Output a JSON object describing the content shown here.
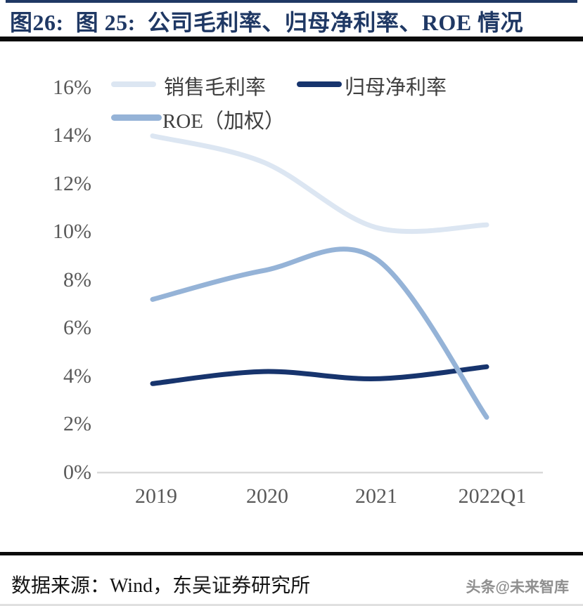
{
  "page": {
    "title": "图26:  图 25:  公司毛利率、归母净利率、ROE 情况"
  },
  "footer": {
    "source": "数据来源：Wind，东吴证券研究所",
    "watermark": "头条@未来智库"
  },
  "colors": {
    "title_navy": "#1f3864",
    "rule_black": "#0b0b0b",
    "axis_line": "#d9d9d9",
    "tick_text": "#595959"
  },
  "chart_data": {
    "type": "line",
    "title": "公司毛利率、归母净利率、ROE 情况",
    "categories": [
      "2019",
      "2020",
      "2021",
      "2022Q1"
    ],
    "series": [
      {
        "name": "销售毛利率",
        "values": [
          14.0,
          12.9,
          10.2,
          10.3
        ],
        "color": "#dce6f2"
      },
      {
        "name": "归母净利率",
        "values": [
          3.7,
          4.2,
          3.9,
          4.4
        ],
        "color": "#17346d"
      },
      {
        "name": "ROE（加权）",
        "values": [
          7.2,
          8.4,
          8.9,
          2.3
        ],
        "color": "#95b3d7"
      }
    ],
    "unit": "%",
    "ylim": [
      0,
      16
    ],
    "y_tick_step": 2,
    "y_ticks": [
      "16%",
      "14%",
      "12%",
      "10%",
      "8%",
      "6%",
      "4%",
      "2%",
      "0%"
    ],
    "grid": false,
    "line_style": "smooth",
    "legend_position": "top-left"
  }
}
